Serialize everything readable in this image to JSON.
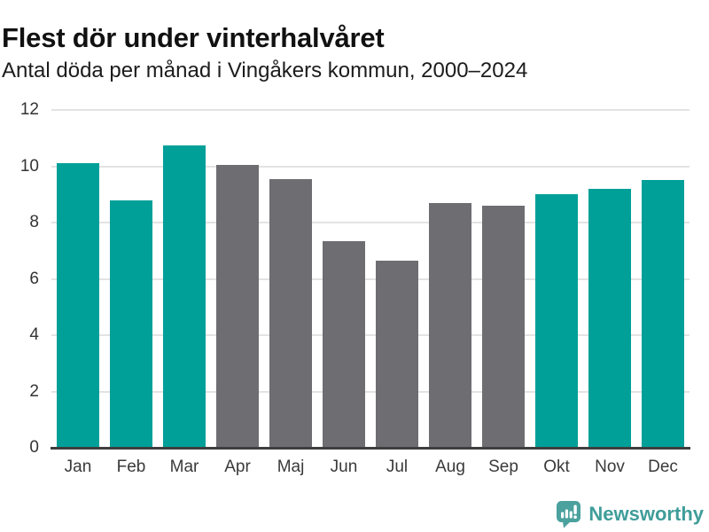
{
  "header": {
    "title": "Flest dör under vinterhalvåret",
    "subtitle": "Antal döda per månad i Vingåkers kommun, 2000–2024"
  },
  "chart_data": {
    "type": "bar",
    "title": "Flest dör under vinterhalvåret",
    "subtitle": "Antal döda per månad i Vingåkers kommun, 2000–2024",
    "categories": [
      "Jan",
      "Feb",
      "Mar",
      "Apr",
      "Maj",
      "Jun",
      "Jul",
      "Aug",
      "Sep",
      "Okt",
      "Nov",
      "Dec"
    ],
    "values": [
      10.1,
      8.8,
      10.75,
      10.05,
      9.55,
      7.35,
      6.65,
      8.7,
      8.6,
      9.0,
      9.2,
      9.5
    ],
    "colors": [
      "#00a099",
      "#00a099",
      "#00a099",
      "#6e6d72",
      "#6e6d72",
      "#6e6d72",
      "#6e6d72",
      "#6e6d72",
      "#6e6d72",
      "#00a099",
      "#00a099",
      "#00a099"
    ],
    "color_legend": {
      "winter_months_teal": "#00a099",
      "summer_months_gray": "#6e6d72"
    },
    "xlabel": "",
    "ylabel": "",
    "ylim": [
      0,
      12
    ],
    "yticks": [
      0,
      2,
      4,
      6,
      8,
      10,
      12
    ],
    "grid": true,
    "legend_position": "none"
  },
  "footer": {
    "brand": "Newsworthy",
    "logo_icon": "newsworthy-speech-bubble-barchart-icon",
    "brand_color": "#3f9d99",
    "logo_bubble_color": "#4ba19d"
  }
}
